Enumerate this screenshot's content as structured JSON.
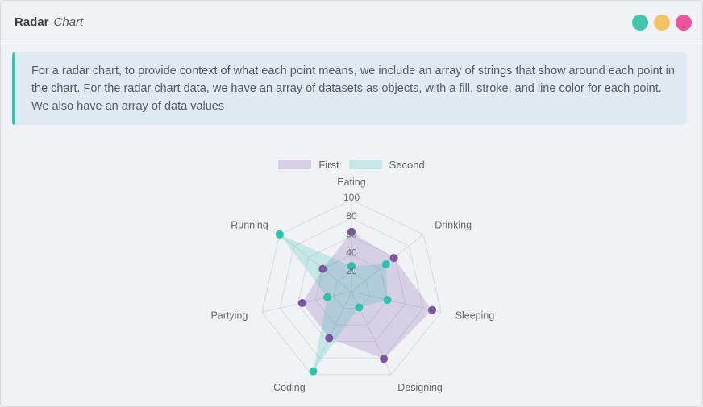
{
  "header": {
    "title": "Radar",
    "subtitle": "Chart",
    "window_dots": [
      {
        "name": "teal",
        "color": "#41c6ac"
      },
      {
        "name": "yellow",
        "color": "#f2c464"
      },
      {
        "name": "pink",
        "color": "#ec549b"
      }
    ]
  },
  "info": {
    "text": "For a radar chart, to provide context of what each point means, we include an array of strings that show around each point in the chart. For the radar chart data, we have an array of datasets as objects, with a fill, stroke, and line color for each point. We also have an array of data values"
  },
  "chart_data": {
    "type": "radar",
    "categories": [
      "Eating",
      "Drinking",
      "Sleeping",
      "Designing",
      "Coding",
      "Partying",
      "Running"
    ],
    "series": [
      {
        "name": "First",
        "values": [
          65,
          59,
          90,
          81,
          56,
          55,
          40
        ],
        "point_color": "#7d55a6",
        "fill_color": "rgba(125,85,166,0.22)"
      },
      {
        "name": "Second",
        "values": [
          28,
          48,
          40,
          19,
          96,
          27,
          100
        ],
        "point_color": "#2bc1ab",
        "fill_color": "rgba(43,193,171,0.22)"
      }
    ],
    "ticks": [
      20,
      40,
      60,
      80,
      100
    ],
    "rmax": 100,
    "grid": true,
    "legend_position": "top",
    "colors": {
      "grid": "#d8d8dc",
      "tick_text": "#6e6f74",
      "label_text": "#65686d"
    }
  }
}
